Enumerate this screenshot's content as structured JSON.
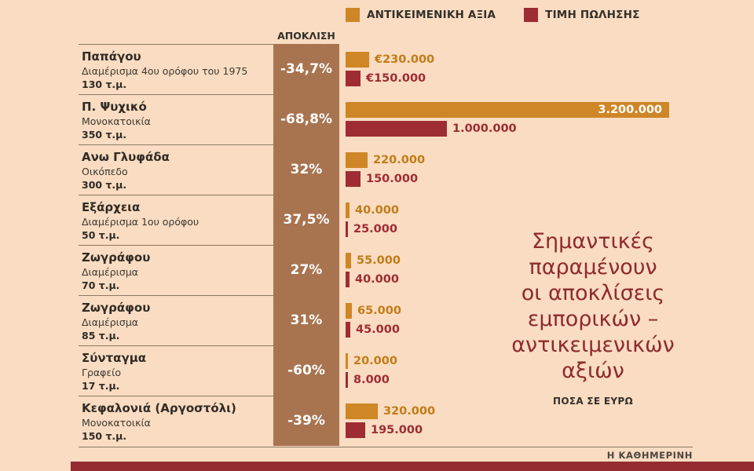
{
  "legend": {
    "items": [
      {
        "label": "ΑΝΤΙΚΕΙΜΕΝΙΚΗ ΑΞΙΑ",
        "color": "#cf8626"
      },
      {
        "label": "ΤΙΜΗ ΠΩΛΗΣΗΣ",
        "color": "#9e2c33"
      }
    ]
  },
  "deviation_header": "ΑΠΟΚΛΙΣΗ",
  "rows": [
    {
      "title": "Παπάγου",
      "subtitle": "Διαμέρισμα 4ου ορόφου του 1975",
      "size": "130 τ.μ.",
      "deviation": "-34,7%",
      "objective": {
        "value": 230000,
        "label": "€230.000"
      },
      "sale": {
        "value": 150000,
        "label": "€150.000"
      }
    },
    {
      "title": "Π. Ψυχικό",
      "subtitle": "Μονοκατοικία",
      "size": "350 τ.μ.",
      "deviation": "-68,8%",
      "objective": {
        "value": 3200000,
        "label": "3.200.000"
      },
      "sale": {
        "value": 1000000,
        "label": "1.000.000"
      }
    },
    {
      "title": "Ανω Γλυφάδα",
      "subtitle": "Οικόπεδο",
      "size": "300 τ.μ.",
      "deviation": "32%",
      "objective": {
        "value": 220000,
        "label": "220.000"
      },
      "sale": {
        "value": 150000,
        "label": "150.000"
      }
    },
    {
      "title": "Εξάρχεια",
      "subtitle": "Διαμέρισμα 1ου ορόφου",
      "size": "50 τ.μ.",
      "deviation": "37,5%",
      "objective": {
        "value": 40000,
        "label": "40.000"
      },
      "sale": {
        "value": 25000,
        "label": "25.000"
      }
    },
    {
      "title": "Ζωγράφου",
      "subtitle": "Διαμέρισμα",
      "size": "70 τ.μ.",
      "deviation": "27%",
      "objective": {
        "value": 55000,
        "label": "55.000"
      },
      "sale": {
        "value": 40000,
        "label": "40.000"
      }
    },
    {
      "title": "Ζωγράφου",
      "subtitle": "Διαμέρισμα",
      "size": "85 τ.μ.",
      "deviation": "31%",
      "objective": {
        "value": 65000,
        "label": "65.000"
      },
      "sale": {
        "value": 45000,
        "label": "45.000"
      }
    },
    {
      "title": "Σύνταγμα",
      "subtitle": "Γραφείο",
      "size": "17 τ.μ.",
      "deviation": "-60%",
      "objective": {
        "value": 20000,
        "label": "20.000"
      },
      "sale": {
        "value": 8000,
        "label": "8.000"
      }
    },
    {
      "title": "Κεφαλονιά (Αργοστόλι)",
      "subtitle": "Μονοκατοικία",
      "size": "150 τ.μ.",
      "deviation": "-39%",
      "objective": {
        "value": 320000,
        "label": "320.000"
      },
      "sale": {
        "value": 195000,
        "label": "195.000"
      }
    }
  ],
  "title_block": {
    "headline_lines": [
      "Σημαντικές",
      "παραμένουν",
      "οι αποκλίσεις",
      "εμπορικών –",
      "αντικειμενικών",
      "αξιών"
    ],
    "unit_note": "ΠΟΣΑ ΣΕ ΕΥΡΩ"
  },
  "source": "Η ΚΑΘΗΜΕΡΙΝΗ",
  "colors": {
    "background": "#f9dcc1",
    "deviation_band": "#a8744f",
    "objective_bar": "#cf8626",
    "sale_bar": "#9e2c33",
    "headline_text": "#8e2a2d",
    "footer_bar": "#942b31"
  },
  "chart_data": {
    "type": "bar",
    "orientation": "horizontal",
    "title": "Σημαντικές παραμένουν οι αποκλίσεις εμπορικών – αντικειμενικών αξιών",
    "unit": "ΠΟΣΑ ΣΕ ΕΥΡΩ",
    "categories": [
      "Παπάγου – Διαμέρισμα 4ου ορόφου του 1975 – 130 τ.μ.",
      "Π. Ψυχικό – Μονοκατοικία – 350 τ.μ.",
      "Ανω Γλυφάδα – Οικόπεδο – 300 τ.μ.",
      "Εξάρχεια – Διαμέρισμα 1ου ορόφου – 50 τ.μ.",
      "Ζωγράφου – Διαμέρισμα – 70 τ.μ.",
      "Ζωγράφου – Διαμέρισμα – 85 τ.μ.",
      "Σύνταγμα – Γραφείο – 17 τ.μ.",
      "Κεφαλονιά (Αργοστόλι) – Μονοκατοικία – 150 τ.μ."
    ],
    "series": [
      {
        "name": "ΑΝΤΙΚΕΙΜΕΝΙΚΗ ΑΞΙΑ",
        "values": [
          230000,
          3200000,
          220000,
          40000,
          55000,
          65000,
          20000,
          320000
        ]
      },
      {
        "name": "ΤΙΜΗ ΠΩΛΗΣΗΣ",
        "values": [
          150000,
          1000000,
          150000,
          25000,
          40000,
          45000,
          8000,
          195000
        ]
      }
    ],
    "deviations": [
      "-34,7%",
      "-68,8%",
      "32%",
      "37,5%",
      "27%",
      "31%",
      "-60%",
      "-39%"
    ],
    "xmax": 3200000,
    "legend_position": "top",
    "grid": false
  }
}
